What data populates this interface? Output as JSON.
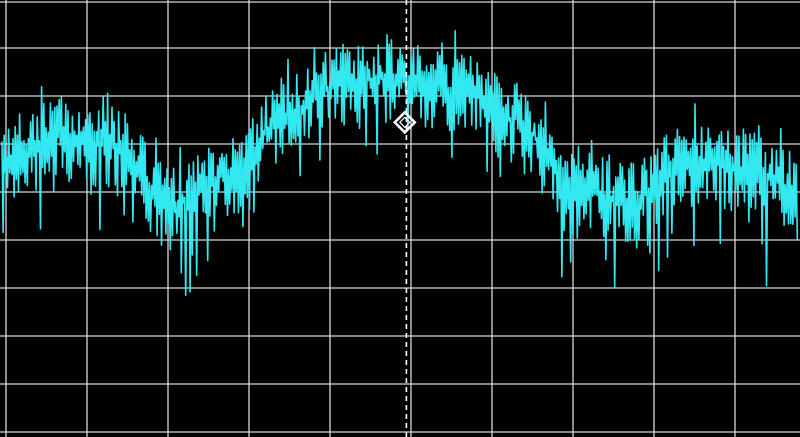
{
  "colors": {
    "background": "#000000",
    "grid": "#d8d8d8",
    "trace": "#33e8f0",
    "marker": "#ffffff"
  },
  "grid": {
    "visible": true,
    "vertical_divisions": 10,
    "horizontal_divisions": 9
  },
  "trace": {
    "shape": "noisy-spectrum-arch",
    "envelope_levels": [
      0.72,
      0.8,
      0.78,
      0.62,
      0.7,
      0.86,
      0.95,
      0.96,
      0.93,
      0.85,
      0.68,
      0.63,
      0.74,
      0.72,
      0.66
    ]
  },
  "marker": {
    "icon": "diamond-marker-icon",
    "position_fraction": 0.506,
    "level_fraction": 0.72
  },
  "center_line": {
    "style": "dashed",
    "position_fraction": 0.508
  }
}
